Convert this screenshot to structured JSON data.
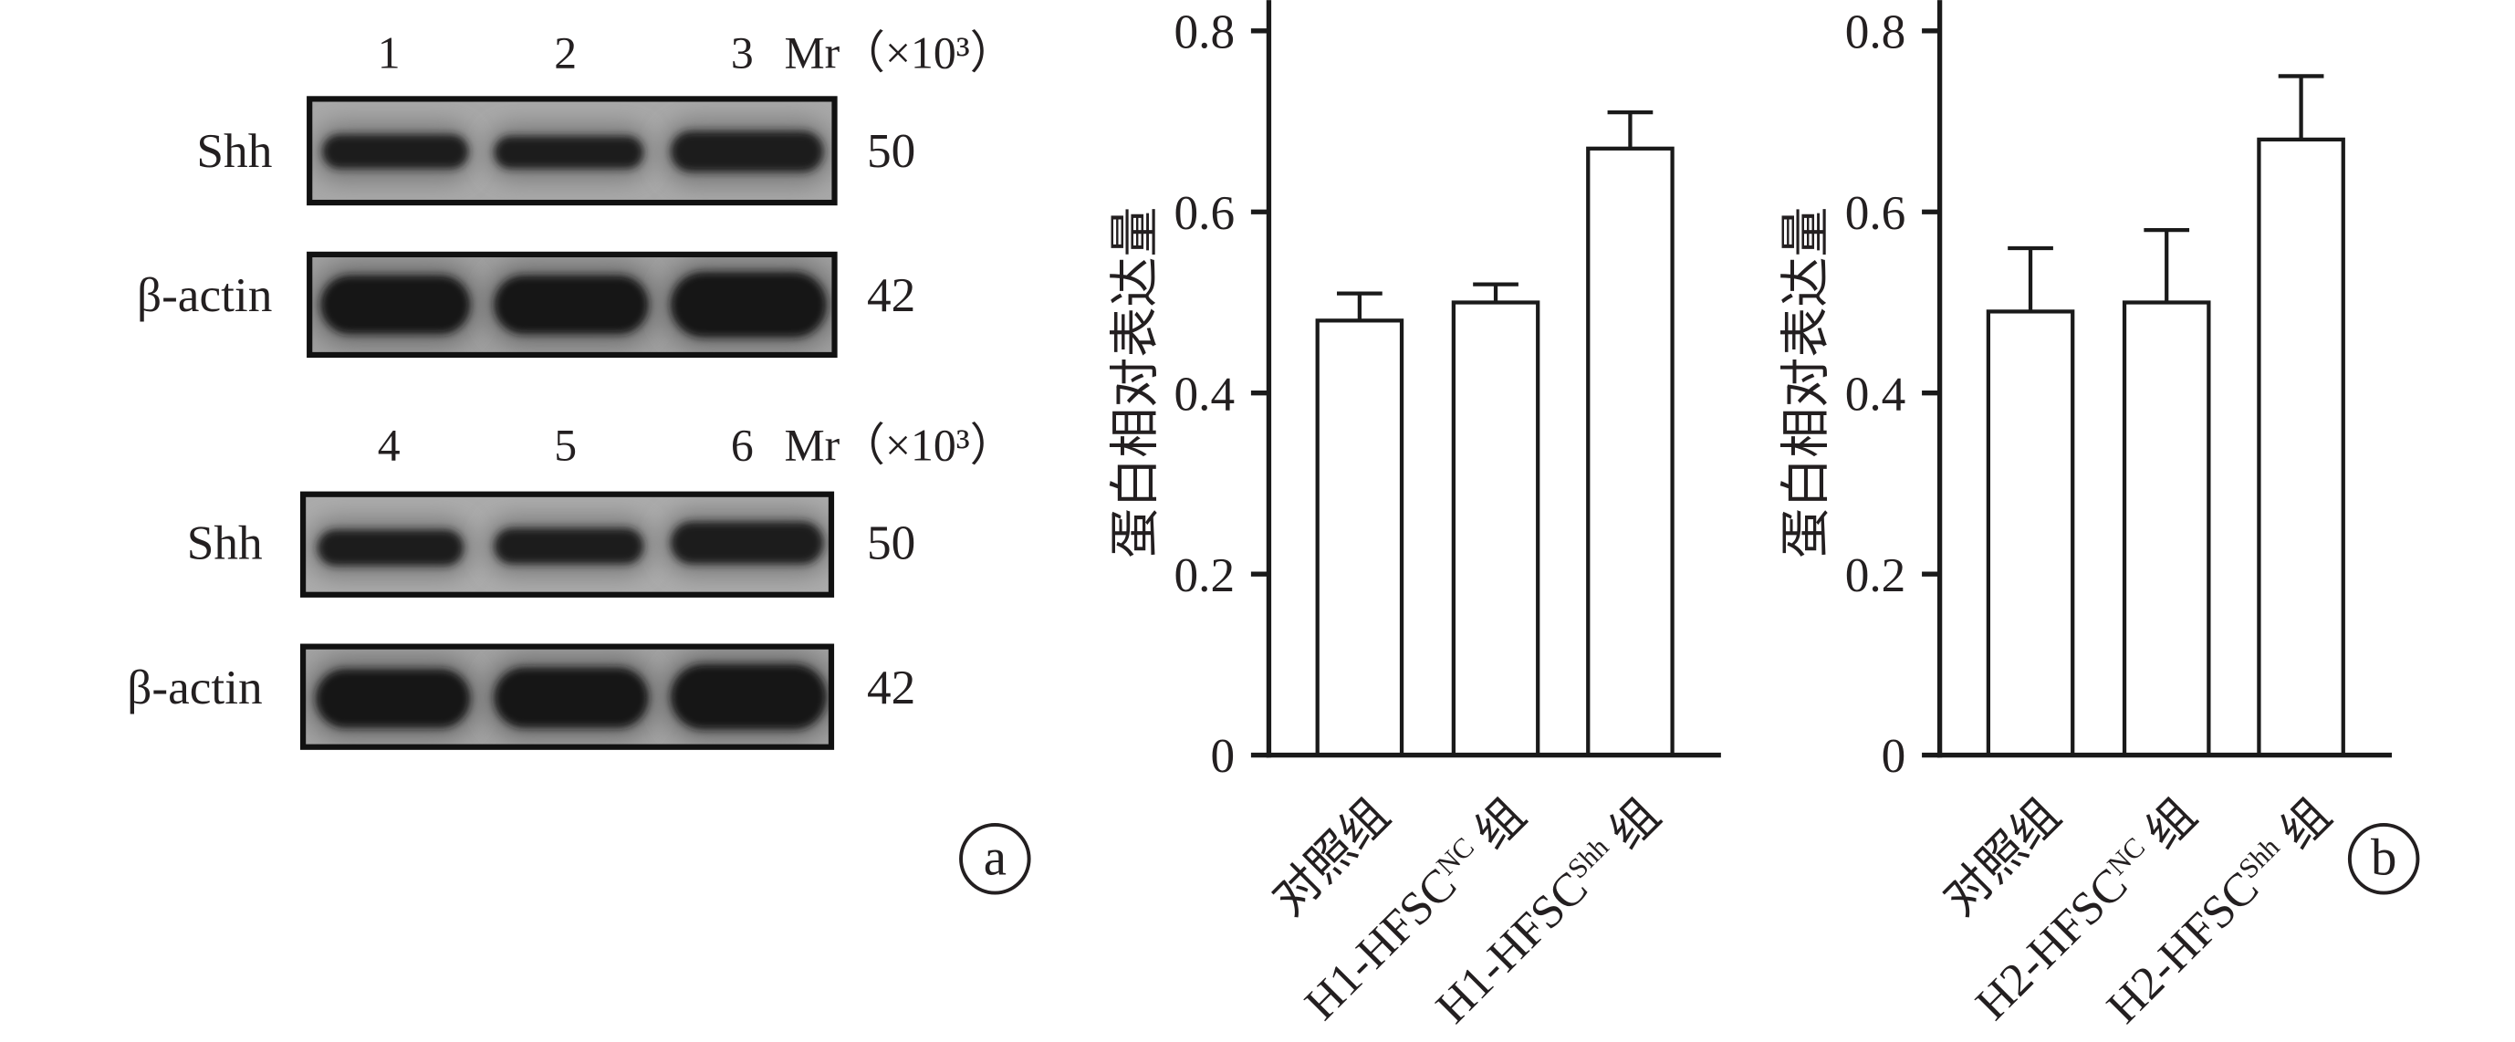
{
  "panel_a": {
    "label": "a",
    "blots": [
      {
        "lanes": [
          "1",
          "2",
          "3"
        ],
        "mr_label": "Mr（×10³）",
        "rows": [
          {
            "protein": "Shh",
            "mr": "50"
          },
          {
            "protein": "β-actin",
            "mr": "42"
          }
        ]
      },
      {
        "lanes": [
          "4",
          "5",
          "6"
        ],
        "mr_label": "Mr（×10³）",
        "rows": [
          {
            "protein": "Shh",
            "mr": "50"
          },
          {
            "protein": "β-actin",
            "mr": "42"
          }
        ]
      }
    ]
  },
  "panel_b": {
    "label": "b"
  },
  "colors": {
    "bar_fill": "#ffffff",
    "stroke": "#1a1a1a"
  },
  "chart_data": [
    {
      "type": "bar",
      "ylabel": "蛋白相对表达量",
      "categories": [
        {
          "text": "对照组"
        },
        {
          "text": "H1-HFSC",
          "sup": "NC",
          "suffix": " 组"
        },
        {
          "text": "H1-HFSC",
          "sup": "Shh",
          "suffix": " 组"
        }
      ],
      "values": [
        0.48,
        0.5,
        0.67
      ],
      "errors": [
        0.03,
        0.02,
        0.04
      ],
      "ylim": [
        0,
        0.8
      ],
      "yticks": [
        0,
        0.2,
        0.4,
        0.6,
        0.8
      ],
      "grid": false
    },
    {
      "type": "bar",
      "ylabel": "蛋白相对表达量",
      "categories": [
        {
          "text": "对照组"
        },
        {
          "text": "H2-HFSC",
          "sup": "NC",
          "suffix": " 组"
        },
        {
          "text": "H2-HFSC",
          "sup": "Shh",
          "suffix": " 组"
        }
      ],
      "values": [
        0.49,
        0.5,
        0.68
      ],
      "errors": [
        0.07,
        0.08,
        0.07
      ],
      "ylim": [
        0,
        0.8
      ],
      "yticks": [
        0,
        0.2,
        0.4,
        0.6,
        0.8
      ],
      "grid": false
    }
  ]
}
